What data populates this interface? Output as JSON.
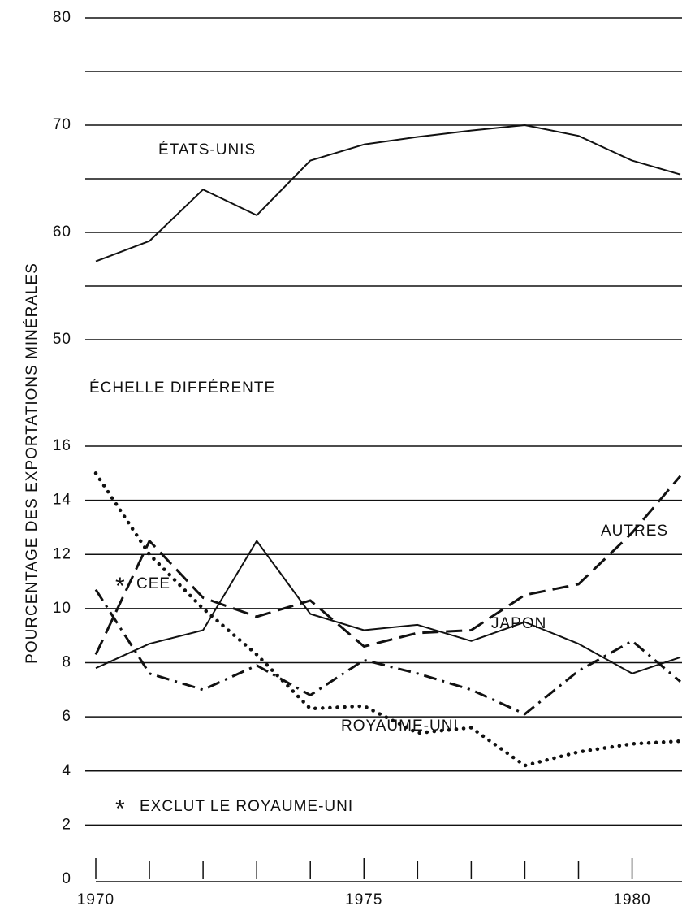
{
  "ylabel": "POURCENTAGE DES EXPORTATIONS MINÉRALES",
  "chart_data": [
    {
      "type": "line",
      "x": [
        1970,
        1971,
        1972,
        1973,
        1974,
        1975,
        1976,
        1977,
        1978,
        1979,
        1980,
        1980.9
      ],
      "xlim": [
        1970,
        1980.9
      ],
      "ylim": [
        50,
        80
      ],
      "yticks": [
        50,
        60,
        70,
        80
      ],
      "ygrid": [
        50,
        55,
        60,
        65,
        70,
        75,
        80
      ],
      "series": [
        {
          "name": "ÉTATS-UNIS",
          "color": "#111111",
          "style": "solid",
          "values": [
            57.3,
            59.2,
            64,
            61.6,
            66.7,
            68.2,
            68.9,
            69.5,
            70,
            69,
            66.7,
            65.4
          ]
        }
      ]
    },
    {
      "type": "line",
      "annotation": "ÉCHELLE DIFFÉRENTE",
      "x": [
        1970,
        1971,
        1972,
        1973,
        1974,
        1975,
        1976,
        1977,
        1978,
        1979,
        1980,
        1980.9
      ],
      "xlim": [
        1970,
        1980.9
      ],
      "xticks": [
        1970,
        1975,
        1980
      ],
      "xminor_ticks": [
        1971,
        1972,
        1973,
        1974,
        1976,
        1977,
        1978,
        1979
      ],
      "ylim": [
        0,
        16
      ],
      "yticks": [
        0,
        2,
        4,
        6,
        8,
        10,
        12,
        14,
        16
      ],
      "ygrid": [
        2,
        4,
        6,
        8,
        10,
        12,
        14,
        16
      ],
      "note_marker": "*",
      "note": "EXCLUT LE ROYAUME-UNI",
      "series": [
        {
          "name": "JAPON",
          "color": "#111111",
          "style": "solid",
          "values": [
            7.8,
            8.7,
            9.2,
            12.5,
            9.8,
            9.2,
            9.4,
            8.8,
            9.5,
            8.7,
            7.6,
            8.2
          ]
        },
        {
          "name": "AUTRES",
          "color": "#111111",
          "style": "dashed",
          "values": [
            8.3,
            12.5,
            10.4,
            9.7,
            10.3,
            8.6,
            9.1,
            9.2,
            10.5,
            10.9,
            12.8,
            14.9
          ]
        },
        {
          "name": "CEE",
          "color": "#111111",
          "style": "dashdot",
          "noted": true,
          "values": [
            10.7,
            7.6,
            7.0,
            7.9,
            6.8,
            8.1,
            7.6,
            7.0,
            6.1,
            7.7,
            8.8,
            7.3
          ]
        },
        {
          "name": "ROYAUME-UNI",
          "color": "#111111",
          "style": "dotted",
          "values": [
            15,
            12,
            10,
            8.3,
            6.3,
            6.4,
            5.4,
            5.6,
            4.2,
            4.7,
            5.0,
            5.1
          ]
        }
      ]
    }
  ]
}
